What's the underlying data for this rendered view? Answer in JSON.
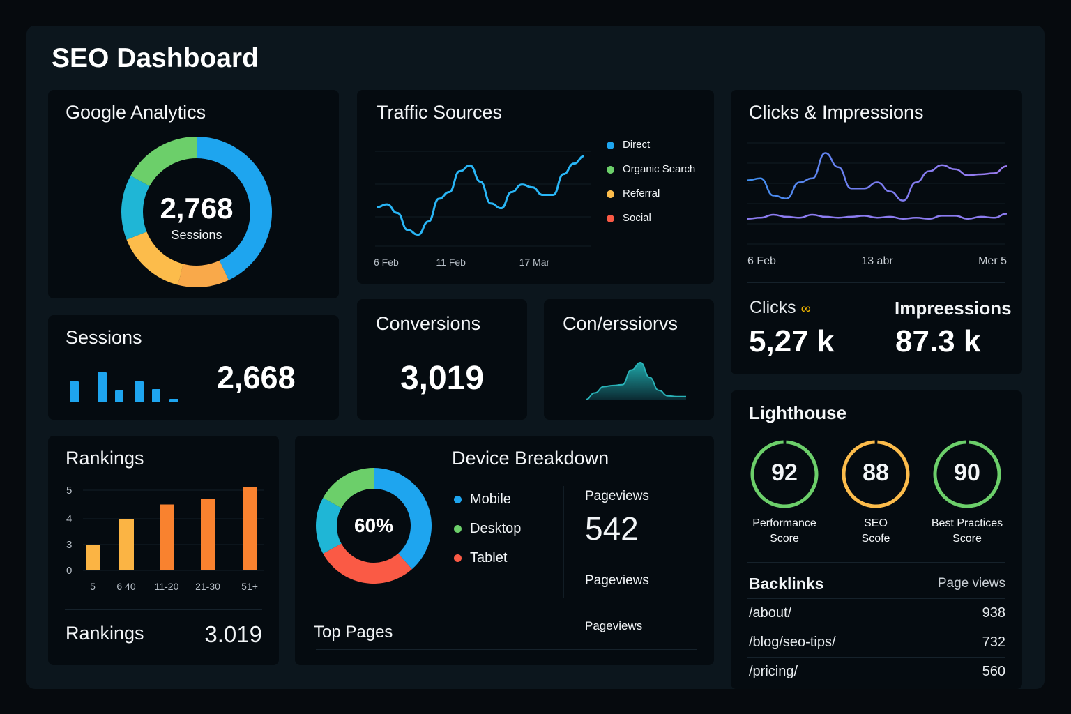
{
  "title": "SEO Dashboard",
  "colors": {
    "blue": "#1ea5ef",
    "green": "#6ccf6a",
    "orange": "#f9a94a",
    "yellow": "#fcbc4b",
    "cyan": "#1fb6d6",
    "red": "#fa5a45",
    "purple": "#8c7cf0",
    "rank_light": "#fbb444",
    "rank_dark": "#f9822f"
  },
  "google_analytics": {
    "title": "Google Analytics",
    "value": "2,768",
    "label": "Sessions",
    "segments": [
      {
        "color": "#1ea5ef",
        "fraction": 0.43
      },
      {
        "color": "#f9a94a",
        "fraction": 0.11
      },
      {
        "color": "#fcbc4b",
        "fraction": 0.15
      },
      {
        "color": "#1fb6d6",
        "fraction": 0.14
      },
      {
        "color": "#6ccf6a",
        "fraction": 0.17
      }
    ]
  },
  "traffic_sources": {
    "title": "Traffic Sources",
    "legend": [
      {
        "label": "Direct",
        "color": "#1ea5ef"
      },
      {
        "label": "Organic Search",
        "color": "#6ccf6a"
      },
      {
        "label": "Referral",
        "color": "#fcbc4b"
      },
      {
        "label": "Social",
        "color": "#fa5a45"
      }
    ]
  },
  "clicks_impressions": {
    "title": "Clicks & Impressions",
    "clicks_label": "Clicks",
    "clicks_value": "5,27 k",
    "impressions_label": "Impreessions",
    "impressions_value": "87.3 k"
  },
  "sessions": {
    "title": "Sessions",
    "value": "2,668"
  },
  "conversions": {
    "title": "Conversions",
    "value": "3,019"
  },
  "conversions2": {
    "title": "Con/erssiorvs"
  },
  "rankings": {
    "title": "Rankings",
    "footer_label": "Rankings",
    "footer_value": "3.019"
  },
  "device": {
    "title": "Device Breakdown",
    "center": "60%",
    "legend": [
      {
        "label": "Mobile",
        "color": "#1ea5ef"
      },
      {
        "label": "Desktop",
        "color": "#6ccf6a"
      },
      {
        "label": "Tablet",
        "color": "#fa5a45"
      }
    ],
    "segments": [
      {
        "color": "#1ea5ef",
        "fraction": 0.385
      },
      {
        "color": "#fa5a45",
        "fraction": 0.285
      },
      {
        "color": "#1fb6d6",
        "fraction": 0.16
      },
      {
        "color": "#6ccf6a",
        "fraction": 0.17
      }
    ],
    "pageviews_label": "Pageviews",
    "pageviews_value": "542",
    "pageviews_label2": "Pageviews",
    "pageviews_label3": "Pageviews",
    "top_pages": "Top Pages"
  },
  "lighthouse": {
    "title": "Lighthouse",
    "scores": [
      {
        "value": "92",
        "label1": "Performance",
        "label2": "Score",
        "color": "#6ccf6a"
      },
      {
        "value": "88",
        "label1": "SEO",
        "label2": "Scofe",
        "color": "#fcbc4b"
      },
      {
        "value": "90",
        "label1": "Best Practices",
        "label2": "Score",
        "color": "#6ccf6a"
      }
    ]
  },
  "backlinks": {
    "title": "Backlinks",
    "column": "Page views",
    "rows": [
      {
        "path": "/about/",
        "views": "938"
      },
      {
        "path": "/blog/seo-tips/",
        "views": "732"
      },
      {
        "path": "/pricing/",
        "views": "560"
      }
    ]
  },
  "chart_data": [
    {
      "type": "line",
      "title": "Traffic Sources",
      "x_tick_labels": [
        {
          "index": 0,
          "label": "6 Feb"
        },
        {
          "index": 6,
          "label": "11 Feb"
        },
        {
          "index": 14,
          "label": "17 Mar"
        }
      ],
      "series": [
        {
          "values": [
            41,
            44,
            35,
            17,
            12,
            26,
            50,
            57,
            79,
            85,
            68,
            45,
            40,
            57,
            65,
            62,
            54,
            54,
            76,
            87,
            95
          ],
          "color": "#29b6f6"
        }
      ],
      "ylim": [
        0,
        100
      ],
      "grid": true,
      "legend": "right"
    },
    {
      "type": "line",
      "title": "Clicks & Impressions",
      "x_tick_labels": [
        {
          "index": 0,
          "label": "6 Feb"
        },
        {
          "index": 10,
          "label": "13 abr"
        },
        {
          "index": 20,
          "label": "Mer 5"
        }
      ],
      "series": [
        {
          "values": [
            63,
            65,
            48,
            45,
            61,
            65,
            90,
            76,
            55,
            55,
            61,
            52,
            43,
            61,
            72,
            78,
            74,
            68,
            69,
            70,
            77
          ]
        },
        {
          "values": [
            25,
            26,
            29,
            27,
            26,
            29,
            27,
            26,
            27,
            28,
            26,
            27,
            25,
            26,
            25,
            28,
            28,
            25,
            27,
            26,
            30
          ]
        }
      ],
      "ylim": [
        0,
        100
      ],
      "grid": true
    },
    {
      "type": "bar",
      "title": "Sessions",
      "values": [
        30,
        43,
        17,
        30,
        19,
        5
      ]
    },
    {
      "type": "area",
      "title": "Con/erssiorvs",
      "values": [
        0,
        18,
        35,
        38,
        40,
        80,
        100,
        60,
        25,
        10,
        8,
        8
      ]
    },
    {
      "type": "bar",
      "title": "Rankings",
      "categories": [
        "5",
        "6 40",
        "11-20",
        "21-30",
        "51+"
      ],
      "values": [
        3.0,
        4.0,
        4.5,
        4.7,
        5.1
      ],
      "y_ticks": [
        "5",
        "4",
        "3",
        "0"
      ],
      "grid": true
    }
  ]
}
